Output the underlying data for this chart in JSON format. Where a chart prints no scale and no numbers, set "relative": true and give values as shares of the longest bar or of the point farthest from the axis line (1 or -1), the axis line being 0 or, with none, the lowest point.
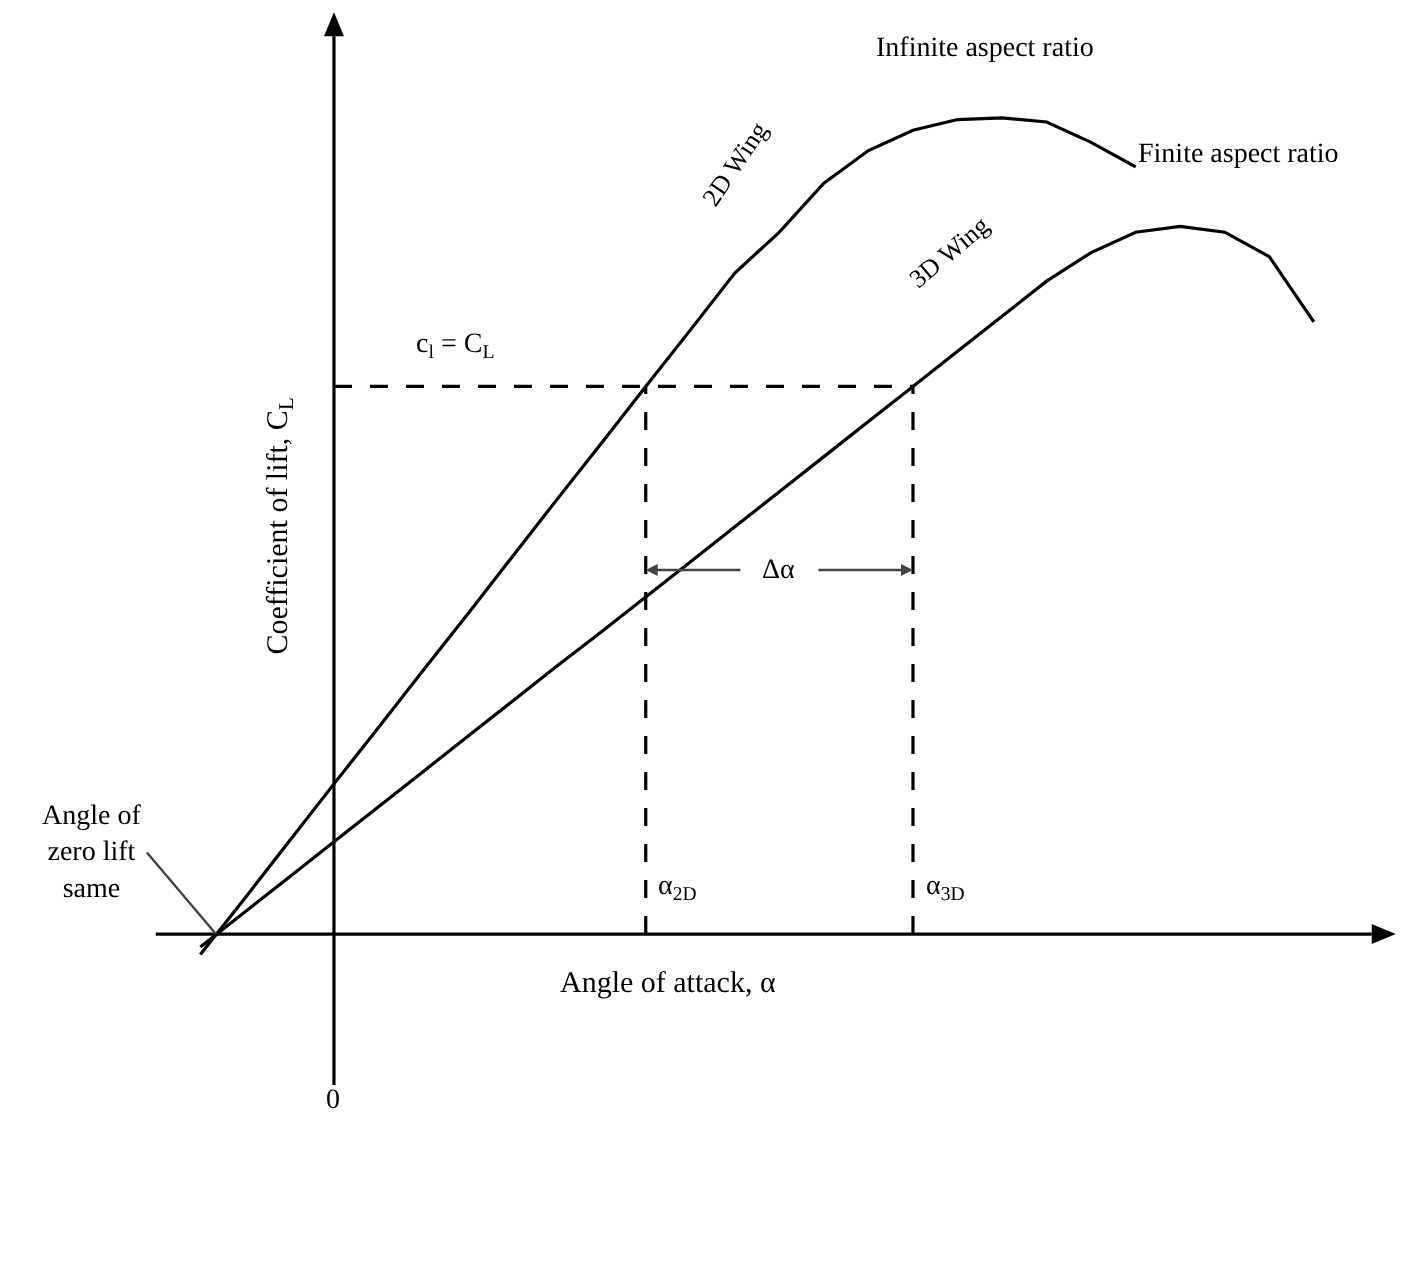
{
  "chart_data": {
    "type": "line",
    "relative": true,
    "xlabel": "Angle of attack, α",
    "ylabel": "Coefficient of lift, C$_{L}$",
    "legend": false,
    "marker": "none",
    "categories": [
      null,
      null,
      null,
      null,
      null,
      null,
      null,
      null,
      null,
      null,
      null,
      null,
      null,
      null,
      null,
      null,
      null,
      null,
      null,
      null,
      null,
      null,
      null,
      null,
      null,
      null
    ],
    "series": [
      {
        "name": "2D Wing",
        "color": "#000000",
        "values": [
          -0.025,
          0.044,
          0.114,
          0.184,
          0.253,
          0.323,
          0.392,
          0.462,
          0.532,
          0.601,
          0.671,
          0.74,
          0.81,
          0.86,
          0.92,
          0.96,
          0.985,
          0.998,
          1.0,
          0.995,
          0.97,
          0.94,
          null,
          null,
          null,
          null
        ]
      },
      {
        "name": "3D Wing",
        "color": "#000000",
        "values": [
          -0.016,
          0.027,
          0.07,
          0.113,
          0.156,
          0.199,
          0.242,
          0.285,
          0.328,
          0.37,
          0.413,
          0.456,
          0.499,
          0.542,
          0.585,
          0.628,
          0.671,
          0.714,
          0.757,
          0.8,
          0.835,
          0.86,
          0.867,
          0.86,
          0.83,
          0.75
        ]
      },
      {
        "color": "#000000",
        "line_style": "dashed",
        "values": [
          null,
          null,
          null,
          0.671,
          0.671,
          0.671,
          0.671,
          0.671,
          0.671,
          0.671,
          0.671,
          0.671,
          0.671,
          0.671,
          0.671,
          0.671,
          0.671,
          null,
          null,
          null,
          null,
          null,
          null,
          null,
          null,
          null
        ]
      }
    ],
    "annotations": [
      "Infinite aspect ratio",
      "Finite aspect ratio",
      "c$_{l}$ = C$_{L}$",
      "Δα",
      "α$_{2D}$",
      "α$_{3D}$",
      "Angle of\nzero lift\nsame",
      "0"
    ]
  }
}
